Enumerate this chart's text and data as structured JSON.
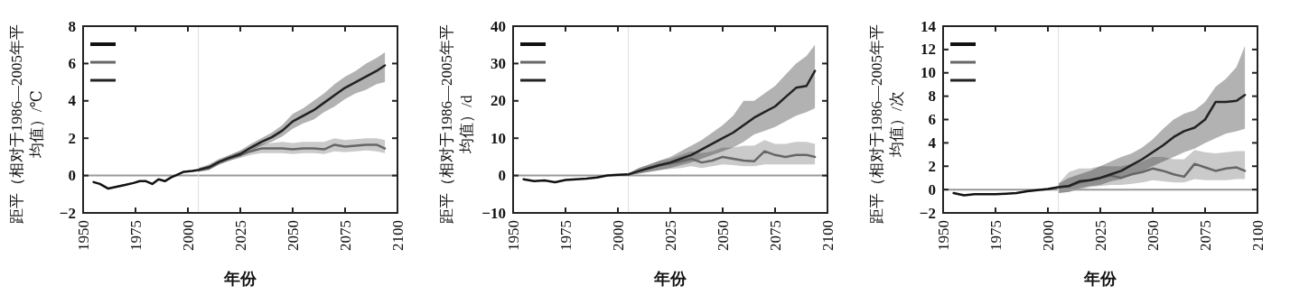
{
  "chart_data": [
    {
      "type": "line",
      "xlabel": "年份",
      "ylabel": "距平（相对于1986—2005年平均值）/℃",
      "xlim": [
        1950,
        2100
      ],
      "xticks": [
        1950,
        1975,
        2000,
        2025,
        2050,
        2075,
        2100
      ],
      "ylim": [
        -2,
        8
      ],
      "yticks": [
        -2,
        0,
        2,
        4,
        6,
        8
      ],
      "ref_lines": [
        {
          "axis": "y",
          "value": 0,
          "color": "#999999"
        },
        {
          "axis": "x",
          "value": 2005,
          "color": "#dddddd"
        }
      ],
      "series": [
        {
          "color": "#111111",
          "x": [
            1955,
            1958,
            1962,
            1966,
            1970,
            1974,
            1977,
            1980,
            1983,
            1986,
            1989,
            1992,
            1995,
            1998,
            2002,
            2005
          ],
          "values": [
            -0.35,
            -0.45,
            -0.7,
            -0.6,
            -0.5,
            -0.4,
            -0.3,
            -0.3,
            -0.45,
            -0.2,
            -0.3,
            -0.1,
            0.05,
            0.2,
            0.25,
            0.3
          ]
        },
        {
          "color": "#666666",
          "x": [
            2005,
            2010,
            2015,
            2020,
            2025,
            2030,
            2035,
            2040,
            2045,
            2050,
            2055,
            2060,
            2065,
            2070,
            2075,
            2080,
            2085,
            2090,
            2094
          ],
          "values": [
            0.3,
            0.4,
            0.7,
            0.95,
            1.1,
            1.3,
            1.45,
            1.45,
            1.45,
            1.4,
            1.45,
            1.45,
            1.4,
            1.65,
            1.55,
            1.6,
            1.65,
            1.65,
            1.45
          ],
          "lower": [
            0.2,
            0.3,
            0.6,
            0.8,
            0.95,
            1.1,
            1.2,
            1.2,
            1.2,
            1.15,
            1.2,
            1.2,
            1.15,
            1.3,
            1.25,
            1.3,
            1.35,
            1.3,
            1.2
          ],
          "upper": [
            0.4,
            0.5,
            0.8,
            1.1,
            1.3,
            1.5,
            1.7,
            1.75,
            1.8,
            1.75,
            1.8,
            1.8,
            1.8,
            2.0,
            1.9,
            1.95,
            2.0,
            2.0,
            1.9
          ]
        },
        {
          "color": "#222222",
          "x": [
            2005,
            2010,
            2015,
            2020,
            2025,
            2030,
            2035,
            2040,
            2045,
            2050,
            2055,
            2060,
            2065,
            2070,
            2075,
            2080,
            2085,
            2090,
            2094
          ],
          "values": [
            0.3,
            0.45,
            0.75,
            0.95,
            1.15,
            1.5,
            1.8,
            2.05,
            2.4,
            2.9,
            3.2,
            3.5,
            3.9,
            4.3,
            4.7,
            5.0,
            5.3,
            5.6,
            5.9
          ],
          "lower": [
            0.2,
            0.3,
            0.6,
            0.8,
            1.0,
            1.3,
            1.6,
            1.8,
            2.1,
            2.5,
            2.8,
            3.0,
            3.4,
            3.7,
            4.1,
            4.4,
            4.6,
            4.9,
            5.0
          ],
          "upper": [
            0.4,
            0.6,
            0.9,
            1.1,
            1.35,
            1.7,
            2.0,
            2.3,
            2.7,
            3.3,
            3.6,
            4.0,
            4.4,
            4.9,
            5.3,
            5.6,
            6.0,
            6.3,
            6.6
          ]
        }
      ]
    },
    {
      "type": "line",
      "xlabel": "年份",
      "ylabel": "距平（相对于1986—2005年平均值）/d",
      "xlim": [
        1950,
        2100
      ],
      "xticks": [
        1950,
        1975,
        2000,
        2025,
        2050,
        2075,
        2100
      ],
      "ylim": [
        -10,
        40
      ],
      "yticks": [
        -10,
        0,
        10,
        20,
        30,
        40
      ],
      "ref_lines": [
        {
          "axis": "y",
          "value": 0,
          "color": "#999999"
        },
        {
          "axis": "x",
          "value": 2005,
          "color": "#dddddd"
        }
      ],
      "series": [
        {
          "color": "#111111",
          "x": [
            1955,
            1960,
            1965,
            1970,
            1975,
            1980,
            1985,
            1990,
            1995,
            2000,
            2005
          ],
          "values": [
            -1,
            -1.5,
            -1.3,
            -1.8,
            -1.2,
            -1,
            -0.8,
            -0.5,
            0,
            0.2,
            0.3
          ]
        },
        {
          "color": "#666666",
          "x": [
            2005,
            2010,
            2015,
            2020,
            2025,
            2030,
            2035,
            2040,
            2045,
            2050,
            2055,
            2060,
            2065,
            2070,
            2075,
            2080,
            2085,
            2090,
            2094
          ],
          "values": [
            0.3,
            1.2,
            2,
            2.8,
            3.2,
            3.8,
            4.5,
            3.5,
            4,
            5,
            4.5,
            4,
            3.8,
            6.5,
            5.5,
            5,
            5.5,
            5.5,
            5
          ],
          "lower": [
            0,
            0.5,
            1,
            1.5,
            1.8,
            2,
            2.5,
            2,
            2.5,
            3,
            2.8,
            2.5,
            2.5,
            3,
            3,
            3,
            3,
            3,
            3
          ],
          "upper": [
            0.6,
            2,
            3,
            4,
            4.5,
            5.5,
            6.5,
            6,
            6.5,
            7.5,
            7.5,
            8,
            8,
            9.5,
            8.5,
            8.5,
            9,
            9,
            8.5
          ]
        },
        {
          "color": "#222222",
          "x": [
            2005,
            2010,
            2015,
            2020,
            2025,
            2030,
            2035,
            2040,
            2045,
            2050,
            2055,
            2060,
            2065,
            2070,
            2075,
            2080,
            2085,
            2090,
            2094
          ],
          "values": [
            0.3,
            1.2,
            2,
            2.8,
            3.5,
            4.5,
            5.5,
            7,
            8.5,
            10,
            11.5,
            13.5,
            15.5,
            17,
            18.5,
            21,
            23.5,
            24,
            28
          ],
          "lower": [
            0,
            0.5,
            1,
            1.5,
            2,
            2.8,
            3.5,
            4.5,
            5.5,
            6.5,
            7.5,
            9,
            11,
            12,
            13,
            14.5,
            16,
            17,
            18
          ],
          "upper": [
            0.6,
            2,
            3,
            4,
            5,
            6.5,
            8,
            9.5,
            11.5,
            13.5,
            16,
            20,
            20,
            22,
            24,
            27,
            30,
            32,
            35
          ]
        }
      ]
    },
    {
      "type": "line",
      "xlabel": "年份",
      "ylabel": "距平（相对于1986—2005年平均值）/次",
      "xlim": [
        1950,
        2100
      ],
      "xticks": [
        1950,
        1975,
        2000,
        2025,
        2050,
        2075,
        2100
      ],
      "ylim": [
        -2,
        14
      ],
      "yticks": [
        -2,
        0,
        2,
        4,
        6,
        8,
        10,
        12,
        14
      ],
      "ref_lines": [
        {
          "axis": "y",
          "value": 0,
          "color": "#999999"
        },
        {
          "axis": "x",
          "value": 2005,
          "color": "#dddddd"
        }
      ],
      "series": [
        {
          "color": "#111111",
          "x": [
            1955,
            1960,
            1965,
            1970,
            1975,
            1980,
            1985,
            1990,
            1995,
            2000,
            2005
          ],
          "values": [
            -0.3,
            -0.5,
            -0.4,
            -0.4,
            -0.4,
            -0.35,
            -0.3,
            -0.15,
            -0.05,
            0.05,
            0.2
          ]
        },
        {
          "color": "#666666",
          "x": [
            2005,
            2010,
            2015,
            2020,
            2025,
            2030,
            2035,
            2040,
            2045,
            2050,
            2055,
            2060,
            2065,
            2070,
            2075,
            2080,
            2085,
            2090,
            2094
          ],
          "values": [
            0.2,
            0.3,
            0.6,
            0.8,
            1.0,
            1.2,
            1.0,
            1.3,
            1.5,
            1.8,
            1.6,
            1.3,
            1.1,
            2.2,
            1.9,
            1.6,
            1.8,
            1.9,
            1.6
          ],
          "lower": [
            -0.3,
            -0.2,
            0,
            0.2,
            0.3,
            0.4,
            0.4,
            0.5,
            0.6,
            0.8,
            0.7,
            0.6,
            0.6,
            0.9,
            0.8,
            0.8,
            0.8,
            0.9,
            0.9
          ],
          "upper": [
            0.5,
            1.5,
            1.8,
            1.8,
            2,
            2,
            2,
            2.2,
            2.4,
            2.8,
            2.8,
            2.6,
            2.6,
            3.4,
            3.2,
            3.1,
            3.2,
            3.3,
            3.3
          ]
        },
        {
          "color": "#222222",
          "x": [
            2005,
            2010,
            2015,
            2020,
            2025,
            2030,
            2035,
            2040,
            2045,
            2050,
            2055,
            2060,
            2065,
            2070,
            2075,
            2080,
            2085,
            2090,
            2094
          ],
          "values": [
            0.2,
            0.3,
            0.7,
            0.8,
            1.0,
            1.3,
            1.6,
            2.1,
            2.6,
            3.2,
            3.8,
            4.5,
            5.0,
            5.3,
            6.0,
            7.5,
            7.5,
            7.6,
            8.1
          ],
          "lower": [
            -0.3,
            -0.2,
            0.1,
            0.3,
            0.4,
            0.7,
            0.9,
            1.3,
            1.6,
            2,
            2.4,
            2.8,
            3.2,
            3.5,
            4,
            4.4,
            4.8,
            5,
            5.2
          ],
          "upper": [
            0.5,
            1.0,
            1.3,
            1.6,
            2.0,
            2.4,
            2.8,
            3.1,
            3.6,
            4.3,
            5.2,
            6,
            6.5,
            6.8,
            7.5,
            8.8,
            9.5,
            10.5,
            12.3
          ]
        }
      ]
    }
  ]
}
